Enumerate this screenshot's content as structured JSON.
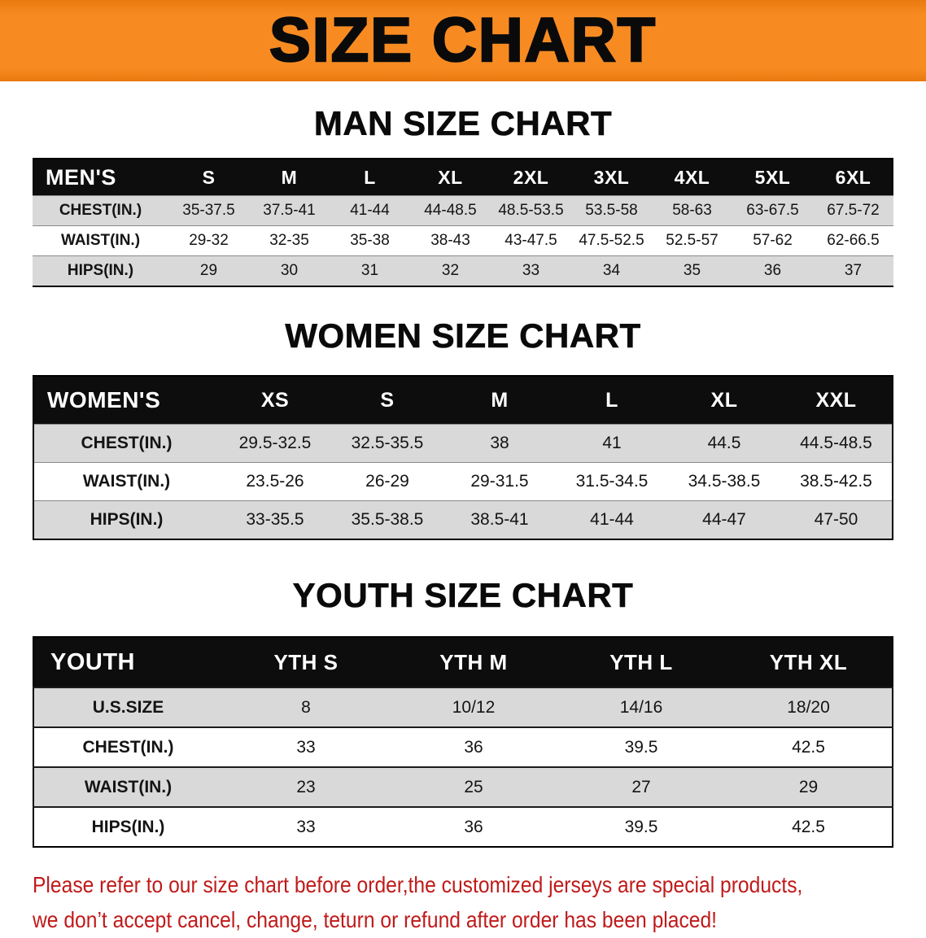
{
  "banner": {
    "title": "SIZE CHART"
  },
  "sections": [
    {
      "heading": "MAN SIZE CHART",
      "table": {
        "header": [
          "MEN'S",
          "S",
          "M",
          "L",
          "XL",
          "2XL",
          "3XL",
          "4XL",
          "5XL",
          "6XL"
        ],
        "rows": [
          {
            "label": "CHEST(IN.)",
            "values": [
              "35-37.5",
              "37.5-41",
              "41-44",
              "44-48.5",
              "48.5-53.5",
              "53.5-58",
              "58-63",
              "63-67.5",
              "67.5-72"
            ]
          },
          {
            "label": "WAIST(IN.)",
            "values": [
              "29-32",
              "32-35",
              "35-38",
              "38-43",
              "43-47.5",
              "47.5-52.5",
              "52.5-57",
              "57-62",
              "62-66.5"
            ]
          },
          {
            "label": "HIPS(IN.)",
            "values": [
              "29",
              "30",
              "31",
              "32",
              "33",
              "34",
              "35",
              "36",
              "37"
            ]
          }
        ]
      }
    },
    {
      "heading": "WOMEN SIZE CHART",
      "table": {
        "header": [
          "WOMEN'S",
          "XS",
          "S",
          "M",
          "L",
          "XL",
          "XXL"
        ],
        "rows": [
          {
            "label": "CHEST(IN.)",
            "values": [
              "29.5-32.5",
              "32.5-35.5",
              "38",
              "41",
              "44.5",
              "44.5-48.5"
            ]
          },
          {
            "label": "WAIST(IN.)",
            "values": [
              "23.5-26",
              "26-29",
              "29-31.5",
              "31.5-34.5",
              "34.5-38.5",
              "38.5-42.5"
            ]
          },
          {
            "label": "HIPS(IN.)",
            "values": [
              "33-35.5",
              "35.5-38.5",
              "38.5-41",
              "41-44",
              "44-47",
              "47-50"
            ]
          }
        ]
      }
    },
    {
      "heading": "YOUTH SIZE CHART",
      "table": {
        "header": [
          "YOUTH",
          "YTH S",
          "YTH M",
          "YTH L",
          "YTH XL"
        ],
        "rows": [
          {
            "label": "U.S.SIZE",
            "values": [
              "8",
              "10/12",
              "14/16",
              "18/20"
            ]
          },
          {
            "label": "CHEST(IN.)",
            "values": [
              "33",
              "36",
              "39.5",
              "42.5"
            ]
          },
          {
            "label": "WAIST(IN.)",
            "values": [
              "23",
              "25",
              "27",
              "29"
            ]
          },
          {
            "label": "HIPS(IN.)",
            "values": [
              "33",
              "36",
              "39.5",
              "42.5"
            ]
          }
        ]
      }
    }
  ],
  "footer": {
    "line1": "Please refer to our size chart before order,the customized jerseys are special products,",
    "line2": "we don’t accept cancel, change, teturn or refund after order has been placed!"
  },
  "colors": {
    "banner_orange": "#f78b22",
    "table_header_black": "#0d0d0d",
    "row_shade_gray": "#d9d9d9",
    "footer_red": "#c01a1a"
  }
}
